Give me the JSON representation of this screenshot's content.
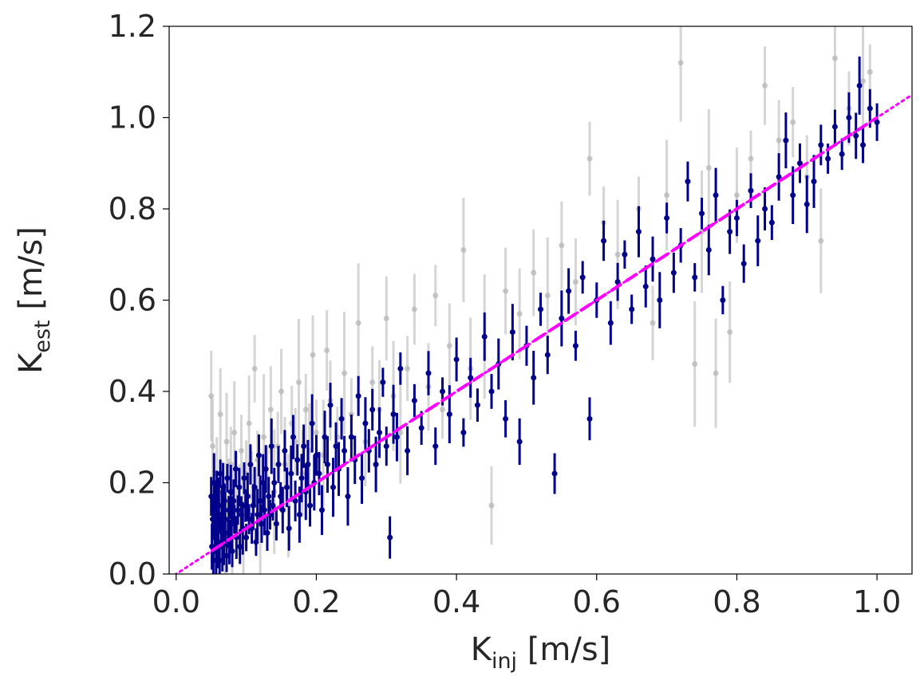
{
  "chart_data": {
    "type": "scatter",
    "title": "",
    "xlabel": {
      "main": "K",
      "sub": "inj",
      "unit": " [m/s]"
    },
    "ylabel": {
      "main": "K",
      "sub": "est",
      "unit": " [m/s]"
    },
    "xlim": [
      -0.01,
      1.05
    ],
    "ylim": [
      0.0,
      1.2
    ],
    "xticks": [
      0.0,
      0.2,
      0.4,
      0.6,
      0.8,
      1.0
    ],
    "xtick_labels": [
      "0.0",
      "0.2",
      "0.4",
      "0.6",
      "0.8",
      "1.0"
    ],
    "yticks": [
      0.0,
      0.2,
      0.4,
      0.6,
      0.8,
      1.0,
      1.2
    ],
    "ytick_labels": [
      "0.0",
      "0.2",
      "0.4",
      "0.6",
      "0.8",
      "1.0",
      "1.2"
    ],
    "grid": false,
    "legend": false,
    "series": [
      {
        "role": "background",
        "color": "#b3b3b3",
        "points": [
          [
            0.05,
            0.39
          ],
          [
            0.052,
            0.28
          ],
          [
            0.055,
            0.05
          ],
          [
            0.058,
            0.22
          ],
          [
            0.06,
            0.12
          ],
          [
            0.063,
            0.35
          ],
          [
            0.066,
            0.18
          ],
          [
            0.07,
            0.08
          ],
          [
            0.072,
            0.29
          ],
          [
            0.075,
            0.16
          ],
          [
            0.078,
            0.24
          ],
          [
            0.08,
            0.11
          ],
          [
            0.083,
            0.31
          ],
          [
            0.086,
            0.2
          ],
          [
            0.09,
            0.14
          ],
          [
            0.093,
            0.27
          ],
          [
            0.096,
            0.09
          ],
          [
            0.1,
            0.22
          ],
          [
            0.104,
            0.33
          ],
          [
            0.108,
            0.17
          ],
          [
            0.112,
            0.45
          ],
          [
            0.116,
            0.25
          ],
          [
            0.12,
            0.13
          ],
          [
            0.125,
            0.3
          ],
          [
            0.13,
            0.21
          ],
          [
            0.135,
            0.36
          ],
          [
            0.14,
            0.18
          ],
          [
            0.145,
            0.28
          ],
          [
            0.15,
            0.4
          ],
          [
            0.155,
            0.24
          ],
          [
            0.16,
            0.15
          ],
          [
            0.165,
            0.33
          ],
          [
            0.17,
            0.29
          ],
          [
            0.175,
            0.42
          ],
          [
            0.18,
            0.22
          ],
          [
            0.185,
            0.36
          ],
          [
            0.19,
            0.27
          ],
          [
            0.195,
            0.48
          ],
          [
            0.2,
            0.31
          ],
          [
            0.21,
            0.26
          ],
          [
            0.215,
            0.49
          ],
          [
            0.22,
            0.38
          ],
          [
            0.23,
            0.3
          ],
          [
            0.24,
            0.44
          ],
          [
            0.25,
            0.35
          ],
          [
            0.26,
            0.55
          ],
          [
            0.27,
            0.29
          ],
          [
            0.28,
            0.42
          ],
          [
            0.29,
            0.36
          ],
          [
            0.3,
            0.56
          ],
          [
            0.31,
            0.39
          ],
          [
            0.32,
            0.31
          ],
          [
            0.33,
            0.45
          ],
          [
            0.34,
            0.58
          ],
          [
            0.36,
            0.41
          ],
          [
            0.37,
            0.61
          ],
          [
            0.38,
            0.36
          ],
          [
            0.39,
            0.5
          ],
          [
            0.41,
            0.71
          ],
          [
            0.42,
            0.45
          ],
          [
            0.44,
            0.52
          ],
          [
            0.45,
            0.15
          ],
          [
            0.47,
            0.62
          ],
          [
            0.49,
            0.57
          ],
          [
            0.51,
            0.66
          ],
          [
            0.53,
            0.61
          ],
          [
            0.55,
            0.72
          ],
          [
            0.57,
            0.64
          ],
          [
            0.59,
            0.91
          ],
          [
            0.61,
            0.77
          ],
          [
            0.63,
            0.7
          ],
          [
            0.66,
            0.8
          ],
          [
            0.68,
            0.55
          ],
          [
            0.7,
            0.83
          ],
          [
            0.72,
            1.12
          ],
          [
            0.74,
            0.46
          ],
          [
            0.75,
            0.75
          ],
          [
            0.76,
            0.89
          ],
          [
            0.77,
            0.44
          ],
          [
            0.79,
            0.53
          ],
          [
            0.8,
            0.83
          ],
          [
            0.82,
            0.91
          ],
          [
            0.84,
            1.07
          ],
          [
            0.86,
            0.95
          ],
          [
            0.88,
            0.99
          ],
          [
            0.9,
            0.87
          ],
          [
            0.92,
            0.73
          ],
          [
            0.94,
            1.13
          ],
          [
            0.96,
            1.02
          ],
          [
            0.98,
            1.08
          ],
          [
            0.99,
            1.1
          ]
        ]
      },
      {
        "role": "foreground",
        "color": "#00008b",
        "points": [
          [
            0.05,
            0.17
          ],
          [
            0.051,
            0.06
          ],
          [
            0.052,
            0.12
          ],
          [
            0.053,
            0.03
          ],
          [
            0.054,
            0.2
          ],
          [
            0.055,
            0.09
          ],
          [
            0.056,
            0.14
          ],
          [
            0.057,
            0.05
          ],
          [
            0.058,
            0.18
          ],
          [
            0.059,
            0.11
          ],
          [
            0.06,
            0.07
          ],
          [
            0.061,
            0.15
          ],
          [
            0.062,
            0.03
          ],
          [
            0.063,
            0.22
          ],
          [
            0.064,
            0.1
          ],
          [
            0.065,
            0.13
          ],
          [
            0.066,
            0.06
          ],
          [
            0.067,
            0.19
          ],
          [
            0.068,
            0.08
          ],
          [
            0.069,
            0.16
          ],
          [
            0.07,
            0.12
          ],
          [
            0.072,
            0.04
          ],
          [
            0.073,
            0.21
          ],
          [
            0.074,
            0.09
          ],
          [
            0.075,
            0.14
          ],
          [
            0.076,
            0.07
          ],
          [
            0.078,
            0.18
          ],
          [
            0.079,
            0.11
          ],
          [
            0.08,
            0.05
          ],
          [
            0.082,
            0.16
          ],
          [
            0.083,
            0.12
          ],
          [
            0.085,
            0.23
          ],
          [
            0.086,
            0.08
          ],
          [
            0.088,
            0.14
          ],
          [
            0.09,
            0.19
          ],
          [
            0.091,
            0.06
          ],
          [
            0.093,
            0.13
          ],
          [
            0.095,
            0.1
          ],
          [
            0.097,
            0.21
          ],
          [
            0.099,
            0.15
          ],
          [
            0.1,
            0.08
          ],
          [
            0.102,
            0.17
          ],
          [
            0.104,
            0.12
          ],
          [
            0.106,
            0.24
          ],
          [
            0.108,
            0.1
          ],
          [
            0.11,
            0.15
          ],
          [
            0.112,
            0.19
          ],
          [
            0.114,
            0.07
          ],
          [
            0.116,
            0.13
          ],
          [
            0.118,
            0.26
          ],
          [
            0.12,
            0.16
          ],
          [
            0.122,
            0.11
          ],
          [
            0.124,
            0.2
          ],
          [
            0.126,
            0.14
          ],
          [
            0.128,
            0.23
          ],
          [
            0.13,
            0.09
          ],
          [
            0.132,
            0.17
          ],
          [
            0.134,
            0.13
          ],
          [
            0.136,
            0.28
          ],
          [
            0.138,
            0.15
          ],
          [
            0.14,
            0.2
          ],
          [
            0.143,
            0.11
          ],
          [
            0.146,
            0.24
          ],
          [
            0.149,
            0.17
          ],
          [
            0.152,
            0.14
          ],
          [
            0.155,
            0.27
          ],
          [
            0.158,
            0.19
          ],
          [
            0.161,
            0.1
          ],
          [
            0.164,
            0.22
          ],
          [
            0.167,
            0.3
          ],
          [
            0.17,
            0.16
          ],
          [
            0.173,
            0.25
          ],
          [
            0.176,
            0.13
          ],
          [
            0.179,
            0.21
          ],
          [
            0.182,
            0.28
          ],
          [
            0.185,
            0.18
          ],
          [
            0.188,
            0.24
          ],
          [
            0.191,
            0.15
          ],
          [
            0.194,
            0.33
          ],
          [
            0.197,
            0.2
          ],
          [
            0.2,
            0.26
          ],
          [
            0.204,
            0.22
          ],
          [
            0.208,
            0.14
          ],
          [
            0.212,
            0.3
          ],
          [
            0.216,
            0.24
          ],
          [
            0.22,
            0.37
          ],
          [
            0.224,
            0.19
          ],
          [
            0.228,
            0.28
          ],
          [
            0.232,
            0.23
          ],
          [
            0.236,
            0.34
          ],
          [
            0.24,
            0.27
          ],
          [
            0.245,
            0.17
          ],
          [
            0.25,
            0.3
          ],
          [
            0.255,
            0.25
          ],
          [
            0.26,
            0.39
          ],
          [
            0.265,
            0.21
          ],
          [
            0.27,
            0.33
          ],
          [
            0.275,
            0.27
          ],
          [
            0.28,
            0.36
          ],
          [
            0.285,
            0.24
          ],
          [
            0.29,
            0.31
          ],
          [
            0.295,
            0.42
          ],
          [
            0.3,
            0.28
          ],
          [
            0.305,
            0.08
          ],
          [
            0.31,
            0.35
          ],
          [
            0.315,
            0.3
          ],
          [
            0.32,
            0.45
          ],
          [
            0.33,
            0.27
          ],
          [
            0.34,
            0.38
          ],
          [
            0.35,
            0.32
          ],
          [
            0.36,
            0.44
          ],
          [
            0.37,
            0.28
          ],
          [
            0.38,
            0.4
          ],
          [
            0.39,
            0.35
          ],
          [
            0.4,
            0.47
          ],
          [
            0.41,
            0.31
          ],
          [
            0.42,
            0.43
          ],
          [
            0.43,
            0.37
          ],
          [
            0.44,
            0.52
          ],
          [
            0.45,
            0.4
          ],
          [
            0.46,
            0.46
          ],
          [
            0.47,
            0.34
          ],
          [
            0.48,
            0.53
          ],
          [
            0.49,
            0.29
          ],
          [
            0.5,
            0.5
          ],
          [
            0.51,
            0.43
          ],
          [
            0.52,
            0.58
          ],
          [
            0.53,
            0.48
          ],
          [
            0.54,
            0.22
          ],
          [
            0.55,
            0.56
          ],
          [
            0.56,
            0.62
          ],
          [
            0.57,
            0.5
          ],
          [
            0.58,
            0.65
          ],
          [
            0.59,
            0.34
          ],
          [
            0.6,
            0.6
          ],
          [
            0.61,
            0.73
          ],
          [
            0.62,
            0.55
          ],
          [
            0.63,
            0.64
          ],
          [
            0.64,
            0.7
          ],
          [
            0.65,
            0.58
          ],
          [
            0.66,
            0.75
          ],
          [
            0.67,
            0.63
          ],
          [
            0.68,
            0.69
          ],
          [
            0.69,
            0.6
          ],
          [
            0.7,
            0.78
          ],
          [
            0.71,
            0.66
          ],
          [
            0.72,
            0.72
          ],
          [
            0.73,
            0.86
          ],
          [
            0.74,
            0.65
          ],
          [
            0.75,
            0.79
          ],
          [
            0.76,
            0.71
          ],
          [
            0.77,
            0.83
          ],
          [
            0.78,
            0.6
          ],
          [
            0.79,
            0.75
          ],
          [
            0.8,
            0.78
          ],
          [
            0.81,
            0.68
          ],
          [
            0.82,
            0.84
          ],
          [
            0.83,
            0.73
          ],
          [
            0.84,
            0.8
          ],
          [
            0.85,
            0.77
          ],
          [
            0.86,
            0.87
          ],
          [
            0.87,
            0.95
          ],
          [
            0.88,
            0.83
          ],
          [
            0.89,
            0.9
          ],
          [
            0.9,
            0.81
          ],
          [
            0.91,
            0.86
          ],
          [
            0.92,
            0.94
          ],
          [
            0.93,
            0.91
          ],
          [
            0.94,
            0.98
          ],
          [
            0.95,
            0.92
          ],
          [
            0.96,
            1.0
          ],
          [
            0.97,
            0.96
          ],
          [
            0.975,
            1.07
          ],
          [
            0.98,
            0.94
          ],
          [
            0.99,
            1.02
          ],
          [
            1.0,
            0.99
          ]
        ]
      }
    ],
    "reference_lines": [
      {
        "style": "dotted",
        "color": "#ff00ff",
        "x": [
          -0.01,
          1.05
        ],
        "y": [
          -0.01,
          1.05
        ]
      },
      {
        "style": "dashed",
        "color": "#ff00ff",
        "x": [
          0.05,
          1.0
        ],
        "y": [
          0.05,
          1.0
        ]
      }
    ]
  }
}
